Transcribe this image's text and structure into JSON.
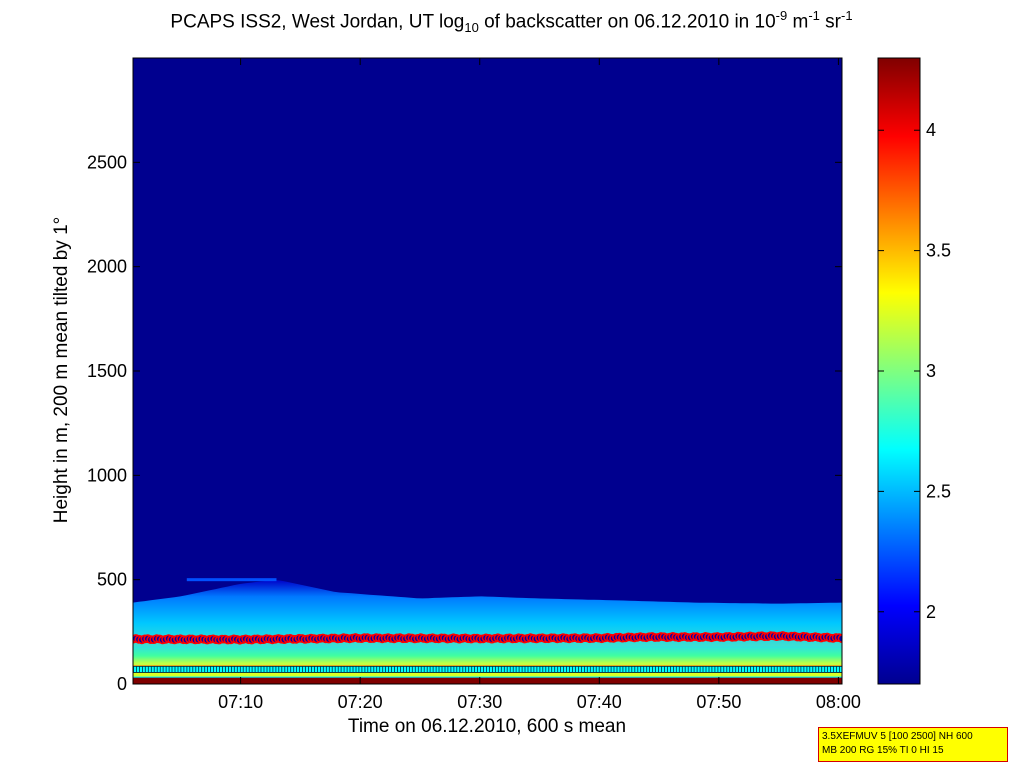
{
  "chart_data": {
    "type": "heatmap",
    "title": {
      "prefix": "PCAPS ISS2, West Jordan, UT log",
      "sub": "10",
      "mid": " of backscatter on 06.12.2010 in 10",
      "sup1": "-9",
      "mid2": " m",
      "sup2": "-1",
      "mid3": " sr",
      "sup3": "-1"
    },
    "xlabel": "Time on 06.12.2010, 600 s mean",
    "ylabel": "Height in m, 200 m mean tilted by 1°",
    "x_ticks": [
      "07:10",
      "07:20",
      "07:30",
      "07:40",
      "07:50",
      "08:00"
    ],
    "x_tick_minutes": [
      10,
      20,
      30,
      40,
      50,
      60
    ],
    "x_range_minutes": [
      1,
      60.3
    ],
    "y_ticks": [
      0,
      500,
      1000,
      1500,
      2000,
      2500
    ],
    "ylim": [
      0,
      3000
    ],
    "colorbar": {
      "ticks": [
        2,
        2.5,
        3,
        3.5,
        4
      ],
      "range": [
        1.7,
        4.3
      ],
      "colormap": "jet"
    },
    "layers": [
      {
        "name": "surface",
        "y_range": [
          0,
          30
        ],
        "value": 4.3
      },
      {
        "name": "low_layer",
        "y_range": [
          30,
          180
        ],
        "value": 3.0
      },
      {
        "name": "aerosol_layer",
        "y_range": [
          180,
          400
        ],
        "value": 2.5
      },
      {
        "name": "free_troposphere",
        "y_range": [
          400,
          3000
        ],
        "value": 1.8
      }
    ],
    "aerosol_top_profile": {
      "minutes": [
        1,
        5,
        10,
        13,
        18,
        25,
        30,
        35,
        42,
        48,
        55,
        60.3
      ],
      "heights": [
        390,
        420,
        480,
        500,
        440,
        410,
        420,
        410,
        400,
        390,
        385,
        390
      ]
    },
    "red_marker_heights": {
      "minutes": [
        1,
        10,
        20,
        30,
        40,
        44,
        50,
        55,
        60.3
      ],
      "heights": [
        215,
        213,
        220,
        218,
        220,
        225,
        225,
        230,
        220
      ]
    },
    "cyan_marker_height": 70,
    "colors": {
      "background_field": "#00008f",
      "marker_edge": "#ff0000",
      "marker_fill": "#0000aa",
      "cyan_marker": "#00ffff"
    }
  },
  "info_box": {
    "line1": "3.5XEFMUV 5 [100 2500] NH 600",
    "line2": "MB 200 RG 15% TI 0 HI 15"
  }
}
